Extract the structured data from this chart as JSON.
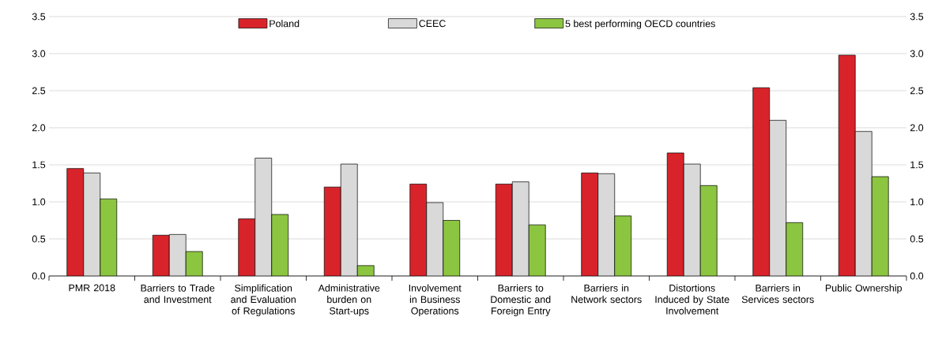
{
  "chart_data": {
    "type": "bar",
    "categories": [
      "PMR 2018",
      "Barriers to Trade and Investment",
      "Simplification and Evaluation of Regulations",
      "Administrative burden on Start-ups",
      "Involvement in Business Operations",
      "Barriers to Domestic and Foreign Entry",
      "Barriers in Network sectors",
      "Distortions Induced by State Involvement",
      "Barriers in Services sectors",
      "Public Ownership"
    ],
    "series": [
      {
        "name": "Poland",
        "color": "#d9232a",
        "values": [
          1.45,
          0.55,
          0.77,
          1.2,
          1.24,
          1.24,
          1.39,
          1.66,
          2.54,
          2.98
        ]
      },
      {
        "name": "CEEC",
        "color": "#d9d9d9",
        "values": [
          1.39,
          0.56,
          1.59,
          1.51,
          0.99,
          1.27,
          1.38,
          1.51,
          2.1,
          1.95
        ]
      },
      {
        "name": "5 best performing OECD countries",
        "color": "#8cc540",
        "values": [
          1.04,
          0.33,
          0.83,
          0.14,
          0.75,
          0.69,
          0.81,
          1.22,
          0.72,
          1.34
        ]
      }
    ],
    "ylim": [
      0,
      3.5
    ],
    "yticks": [
      {
        "value": 0,
        "label": "0.0"
      },
      {
        "value": 0.5,
        "label": "0.5"
      },
      {
        "value": 1,
        "label": "1.0"
      },
      {
        "value": 1.5,
        "label": "1.5"
      },
      {
        "value": 2,
        "label": "2.0"
      },
      {
        "value": 2.5,
        "label": "2.5"
      },
      {
        "value": 3,
        "label": "3.0"
      },
      {
        "value": 3.5,
        "label": "3.5"
      }
    ],
    "y2lim": [
      0,
      3.5
    ],
    "y2ticks": [
      {
        "value": 0,
        "label": "0.0"
      },
      {
        "value": 0.5,
        "label": "0.5"
      },
      {
        "value": 1,
        "label": "1.0"
      },
      {
        "value": 1.5,
        "label": "1.5"
      },
      {
        "value": 2,
        "label": "2.0"
      },
      {
        "value": 2.5,
        "label": "2.5"
      },
      {
        "value": 3,
        "label": "3.0"
      },
      {
        "value": 3.5,
        "label": "3.5"
      }
    ],
    "grid": "y",
    "legend": "top"
  }
}
